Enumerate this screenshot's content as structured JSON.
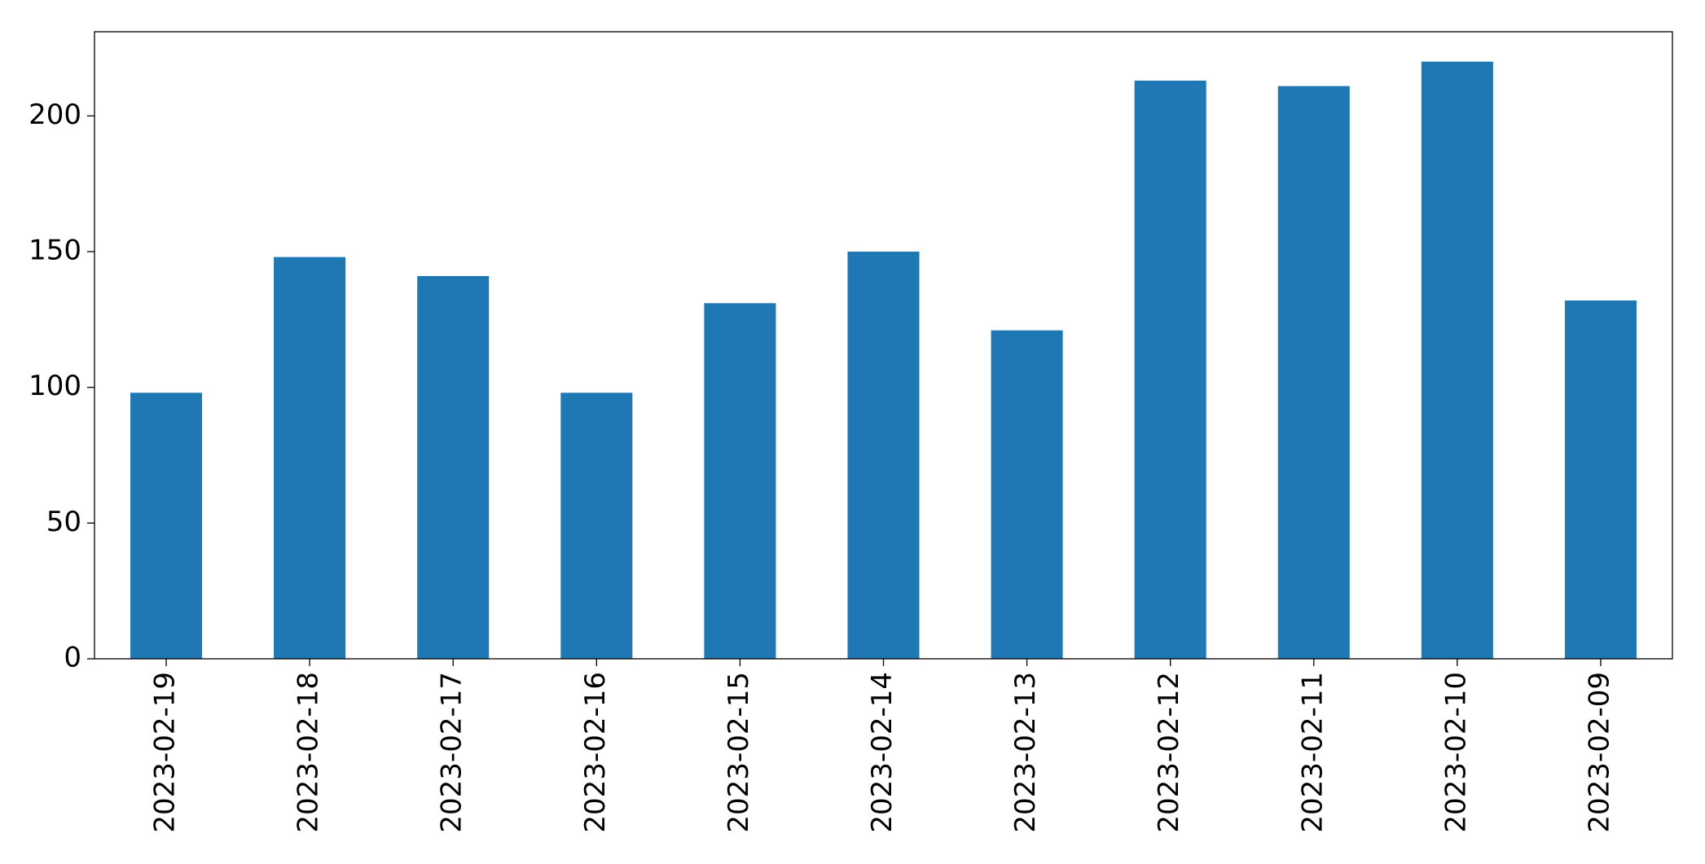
{
  "chart_data": {
    "type": "bar",
    "categories": [
      "2023-02-19",
      "2023-02-18",
      "2023-02-17",
      "2023-02-16",
      "2023-02-15",
      "2023-02-14",
      "2023-02-13",
      "2023-02-12",
      "2023-02-11",
      "2023-02-10",
      "2023-02-09"
    ],
    "values": [
      98,
      148,
      141,
      98,
      131,
      150,
      121,
      213,
      211,
      220,
      132
    ],
    "color": "#1f77b4",
    "ylim": [
      0,
      231
    ],
    "yticks": [
      0,
      50,
      100,
      150,
      200
    ],
    "grid": false
  }
}
